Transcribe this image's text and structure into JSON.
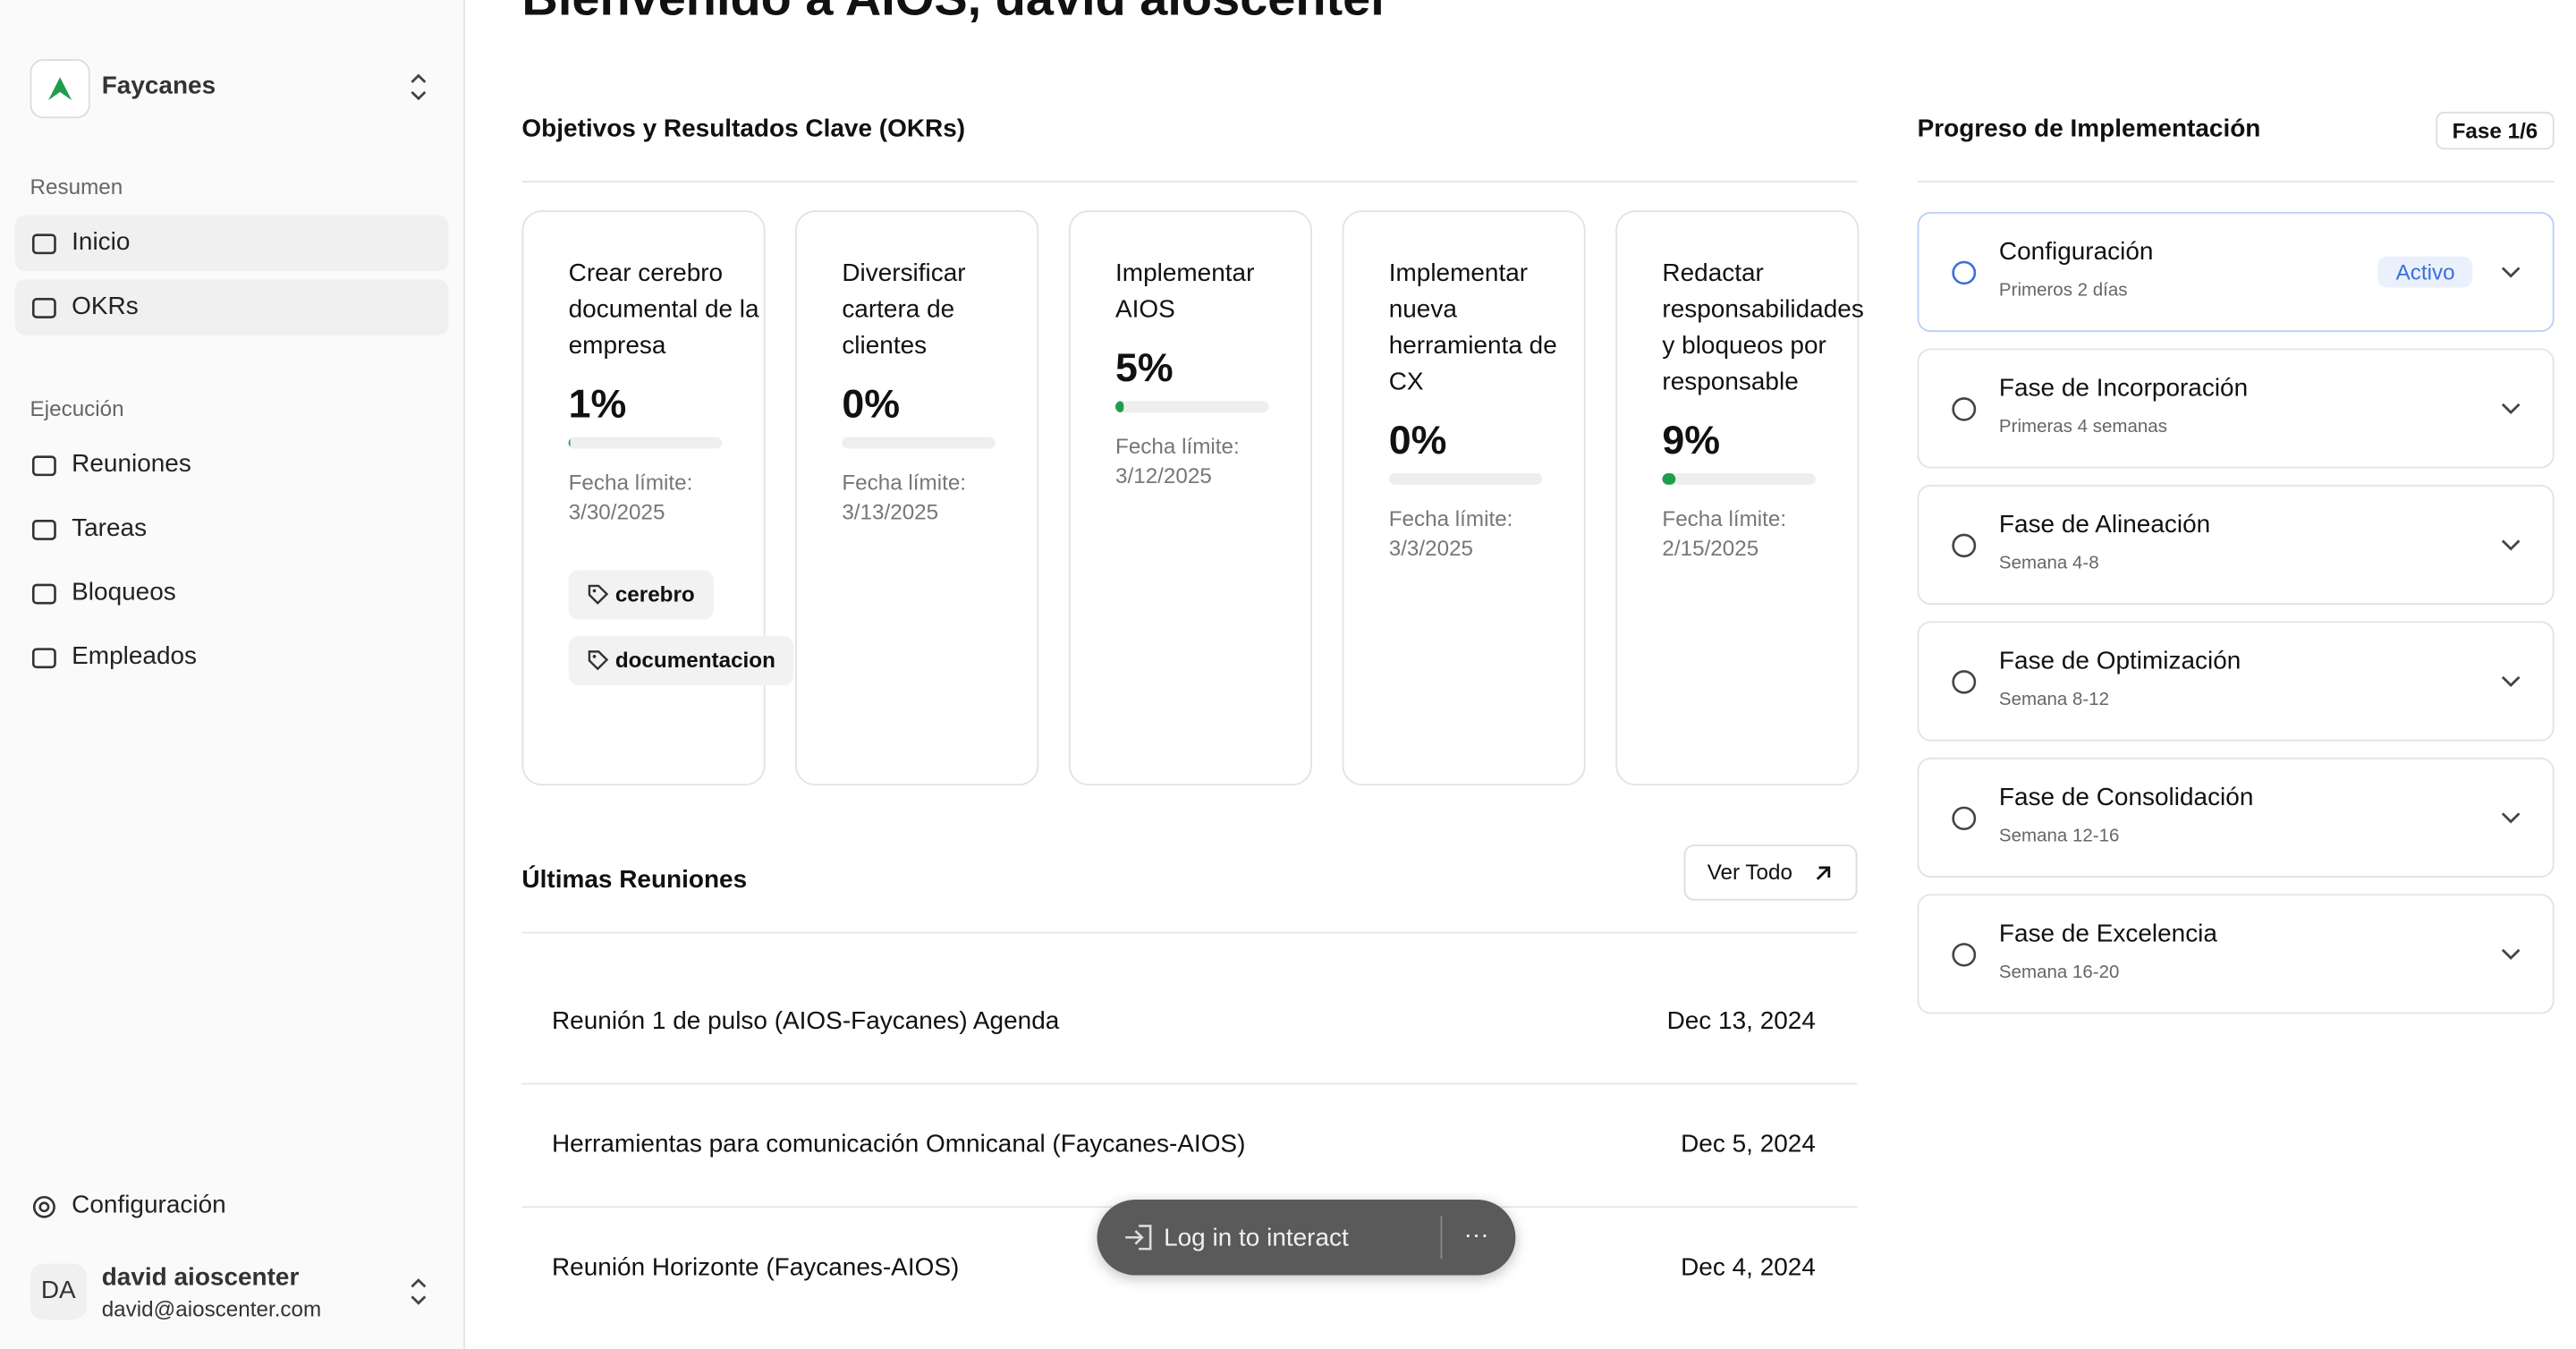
{
  "header": {
    "title": "Bienvenido a AIOS, david aioscenter"
  },
  "sidebar": {
    "workspace": "Faycanes",
    "sections": [
      {
        "label": "Resumen",
        "items": [
          "Inicio",
          "OKRs"
        ]
      },
      {
        "label": "Ejecución",
        "items": [
          "Reuniones",
          "Tareas",
          "Bloqueos",
          "Empleados"
        ]
      }
    ],
    "settings": "Configuración",
    "user": {
      "initials": "DA",
      "name": "david aioscenter",
      "email": "david@aioscenter.com"
    }
  },
  "okrs": {
    "title": "Objetivos y Resultados Clave (OKRs)",
    "cards": [
      {
        "title": " Crear cerebro documental de la empresa",
        "progress": "1%",
        "deadline_label": "Fecha límite:",
        "deadline": "3/30/2025",
        "tags": [
          "cerebro",
          "documentacion"
        ]
      },
      {
        "title": "Diversificar cartera de clientes",
        "progress": "0%",
        "deadline_label": "Fecha límite:",
        "deadline": "3/13/2025",
        "tags": []
      },
      {
        "title": "Implementar AIOS",
        "progress": "5%",
        "deadline_label": "Fecha límite:",
        "deadline": "3/12/2025",
        "tags": []
      },
      {
        "title": "Implementar nueva herramienta de CX",
        "progress": "0%",
        "deadline_label": "Fecha límite:",
        "deadline": "3/3/2025",
        "tags": []
      },
      {
        "title": "Redactar responsabilidades y bloqueos por responsable",
        "progress": "9%",
        "deadline_label": "Fecha límite:",
        "deadline": "2/15/2025",
        "tags": []
      }
    ]
  },
  "meetings": {
    "title": "Últimas Reuniones",
    "button": "Ver Todo",
    "rows": [
      {
        "name": "Reunión 1 de pulso (AIOS-Faycanes) Agenda",
        "date": "Dec 13, 2024"
      },
      {
        "name": "Herramientas para comunicación Omnicanal (Faycanes-AIOS)",
        "date": "Dec 5, 2024"
      },
      {
        "name": "Reunión Horizonte (Faycanes-AIOS)",
        "date": "Dec 4, 2024"
      }
    ]
  },
  "progress": {
    "title": "Progreso de Implementación",
    "badge": "Fase 1/6",
    "phases": [
      {
        "title": "Configuración",
        "subtitle": "Primeros 2 días",
        "status": "Activo"
      },
      {
        "title": "Fase de Incorporación",
        "subtitle": "Primeras 4 semanas"
      },
      {
        "title": "Fase de Alineación",
        "subtitle": "Semana 4-8"
      },
      {
        "title": "Fase de Optimización",
        "subtitle": "Semana 8-12"
      },
      {
        "title": "Fase de Consolidación",
        "subtitle": "Semana 12-16"
      },
      {
        "title": "Fase de Excelencia",
        "subtitle": "Semana 16-20"
      }
    ]
  },
  "overlay": {
    "login": "Log in to interact",
    "more": "···"
  }
}
